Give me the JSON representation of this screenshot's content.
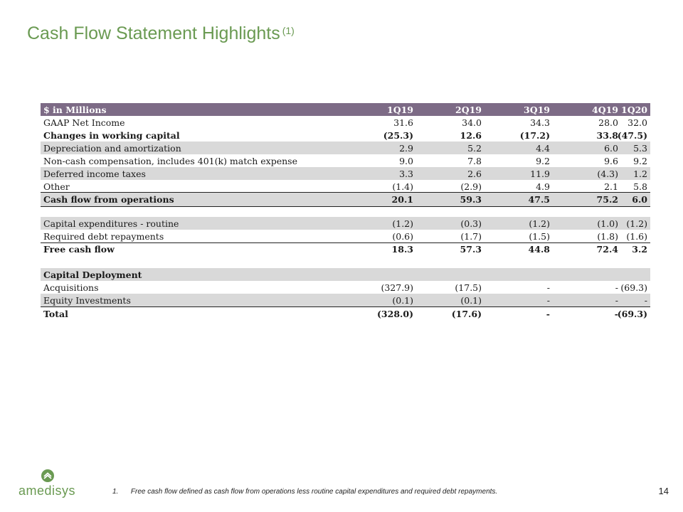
{
  "slide": {
    "title": "Cash Flow Statement Highlights",
    "title_note": "(1)",
    "page_number": "14",
    "footnote_number": "1.",
    "footnote": "Free cash flow defined as cash flow from operations less routine capital expenditures and required debt repayments.",
    "logo_text": "amedisys",
    "accent_color": "#6a9a52",
    "header_color": "#7d6b86"
  },
  "table": {
    "header": {
      "label": "$ in Millions",
      "cols": [
        "1Q19",
        "2Q19",
        "3Q19",
        "4Q19",
        "1Q20"
      ]
    },
    "rows": [
      {
        "label": "GAAP Net Income",
        "values": [
          "31.6",
          "34.0",
          "34.3",
          "28.0",
          "32.0"
        ]
      },
      {
        "label": "Changes in working capital",
        "values": [
          "(25.3)",
          "12.6",
          "(17.2)",
          "33.8",
          "(47.5)"
        ]
      },
      {
        "label": "Depreciation and amortization",
        "values": [
          "2.9",
          "5.2",
          "4.4",
          "6.0",
          "5.3"
        ]
      },
      {
        "label": "Non-cash compensation, includes 401(k) match expense",
        "values": [
          "9.0",
          "7.8",
          "9.2",
          "9.6",
          "9.2"
        ]
      },
      {
        "label": "Deferred income taxes",
        "values": [
          "3.3",
          "2.6",
          "11.9",
          "(4.3)",
          "1.2"
        ]
      },
      {
        "label": "Other",
        "values": [
          "(1.4)",
          "(2.9)",
          "4.9",
          "2.1",
          "5.8"
        ]
      },
      {
        "label": "Cash flow from operations",
        "values": [
          "20.1",
          "59.3",
          "47.5",
          "75.2",
          "6.0"
        ]
      },
      {
        "label": "Capital expenditures - routine",
        "values": [
          "(1.2)",
          "(0.3)",
          "(1.2)",
          "(1.0)",
          "(1.2)"
        ]
      },
      {
        "label": "Required debt repayments",
        "values": [
          "(0.6)",
          "(1.7)",
          "(1.5)",
          "(1.8)",
          "(1.6)"
        ]
      },
      {
        "label": "Free cash flow",
        "values": [
          "18.3",
          "57.3",
          "44.8",
          "72.4",
          "3.2"
        ]
      },
      {
        "label": "Capital Deployment",
        "values": [
          "",
          "",
          "",
          "",
          ""
        ]
      },
      {
        "label": "Acquisitions",
        "values": [
          "(327.9)",
          "(17.5)",
          "-",
          "-",
          "(69.3)"
        ]
      },
      {
        "label": "Equity Investments",
        "values": [
          "(0.1)",
          "(0.1)",
          "-",
          "-",
          "-"
        ]
      },
      {
        "label": "Total",
        "values": [
          "(328.0)",
          "(17.6)",
          "-",
          "-",
          "(69.3)"
        ]
      }
    ]
  }
}
